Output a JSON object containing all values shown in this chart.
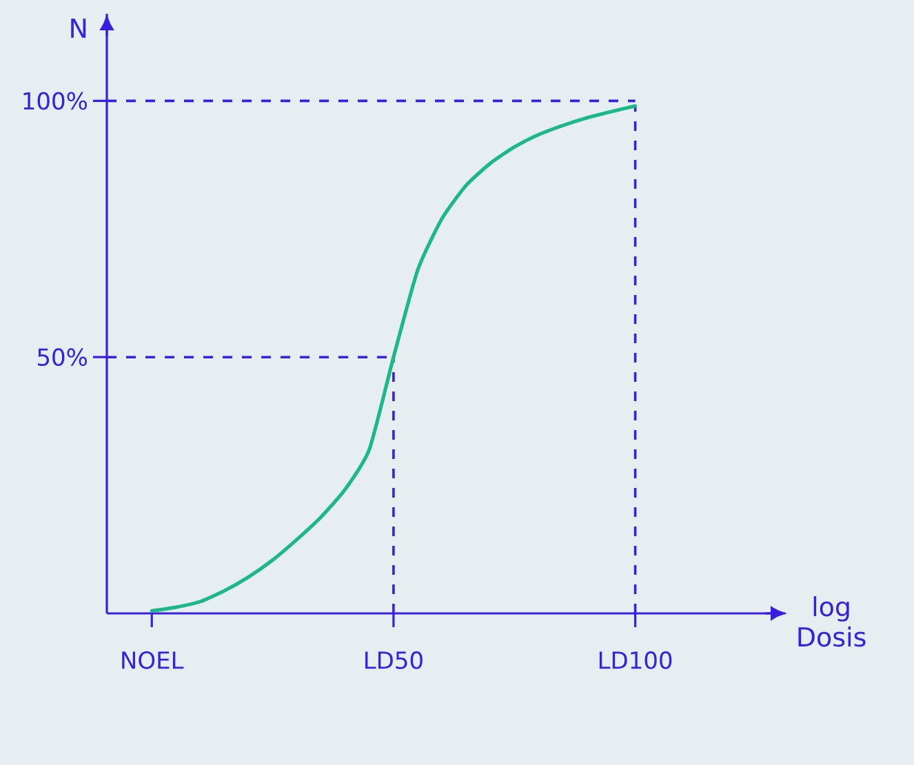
{
  "chart_data": {
    "type": "line",
    "ylabel": "N",
    "xlabel": "log Dosis",
    "color": "#1db887",
    "categories": [
      "NOEL",
      null,
      null,
      null,
      null,
      null,
      null,
      null,
      null,
      null,
      "LD50",
      null,
      null,
      null,
      null,
      null,
      null,
      null,
      null,
      null,
      "LD100"
    ],
    "values": [
      0.5,
      1.2,
      2.3,
      4.4,
      7.1,
      10.4,
      14.4,
      18.8,
      24.2,
      32,
      50,
      67,
      77,
      83.5,
      87.8,
      91,
      93.4,
      95.2,
      96.7,
      97.9,
      99
    ],
    "ylim": [
      0,
      117
    ],
    "yticks": [
      {
        "value": 50,
        "label": "50%"
      },
      {
        "value": 100,
        "label": "100%"
      }
    ],
    "ref_lines": [
      {
        "axis": "y",
        "value": 50,
        "color": "#3a1fe0",
        "line_style": "dashed"
      },
      {
        "axis": "y",
        "value": 100,
        "color": "#3a1fe0",
        "line_style": "dashed"
      },
      {
        "axis": "x",
        "value": "LD50",
        "color": "#3a1fe0",
        "line_style": "dashed"
      },
      {
        "axis": "x",
        "value": "LD100",
        "color": "#3a1fe0",
        "line_style": "dashed"
      }
    ]
  }
}
